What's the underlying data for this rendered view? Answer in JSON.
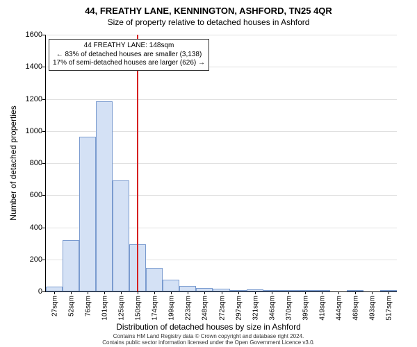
{
  "title_line1": "44, FREATHY LANE, KENNINGTON, ASHFORD, TN25 4QR",
  "title_line2": "Size of property relative to detached houses in Ashford",
  "ylabel": "Number of detached properties",
  "xlabel": "Distribution of detached houses by size in Ashford",
  "footer_line1": "Contains HM Land Registry data © Crown copyright and database right 2024.",
  "footer_line2": "Contains public sector information licensed under the Open Government Licence v3.0.",
  "tooltip": {
    "line1": "44 FREATHY LANE: 148sqm",
    "line2": "← 83% of detached houses are smaller (3,138)",
    "line3": "17% of semi-detached houses are larger (626) →"
  },
  "chart": {
    "type": "histogram",
    "ylim": [
      0,
      1600
    ],
    "ytick_step": 200,
    "yticks": [
      0,
      200,
      400,
      600,
      800,
      1000,
      1200,
      1400,
      1600
    ],
    "x_left_sqm": 15,
    "x_bin_width_sqm": 24.5,
    "x_tick_labels": [
      "27sqm",
      "52sqm",
      "76sqm",
      "101sqm",
      "125sqm",
      "150sqm",
      "174sqm",
      "199sqm",
      "223sqm",
      "248sqm",
      "272sqm",
      "297sqm",
      "321sqm",
      "346sqm",
      "370sqm",
      "395sqm",
      "419sqm",
      "444sqm",
      "468sqm",
      "493sqm",
      "517sqm"
    ],
    "bar_values": [
      30,
      320,
      965,
      1185,
      690,
      295,
      145,
      75,
      35,
      22,
      18,
      10,
      12,
      6,
      4,
      10,
      2,
      0,
      3,
      0,
      2
    ],
    "reference_sqm": 148,
    "colors": {
      "bar_fill": "#d4e1f5",
      "bar_border": "#7a9bcf",
      "grid": "#e0e0e0",
      "axis": "#000000",
      "reference_line": "#d62020",
      "background": "#ffffff"
    },
    "fontsize_title": 13,
    "fontsize_subtitle": 12,
    "fontsize_axis_label": 12,
    "fontsize_tick": 11
  }
}
